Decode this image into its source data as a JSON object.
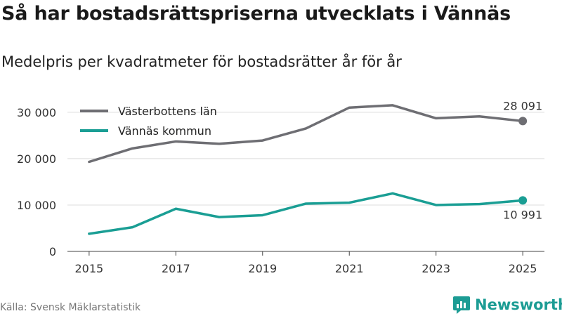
{
  "title": "Så har bostadsrättspriserna utvecklats i Vännäs",
  "subtitle": "Medelpris per kvadratmeter för bostadsrätter år för år",
  "source": "Källa: Svensk Mäklarstatistik",
  "brand": "Newsworthy",
  "chart_data": {
    "type": "line",
    "x": [
      2015,
      2016,
      2017,
      2018,
      2019,
      2020,
      2021,
      2022,
      2023,
      2024,
      2025
    ],
    "xticks": [
      2015,
      2017,
      2019,
      2021,
      2023,
      2025
    ],
    "xtick_labels": [
      "2015",
      "2017",
      "2019",
      "2021",
      "2023",
      "2025"
    ],
    "yticks": [
      0,
      10000,
      20000,
      30000
    ],
    "ytick_labels": [
      "0",
      "10 000",
      "20 000",
      "30 000"
    ],
    "ylim": [
      0,
      33000
    ],
    "xlim": [
      2014.5,
      2025.5
    ],
    "series": [
      {
        "name": "Västerbottens län",
        "color": "#6e6e73",
        "values": [
          19300,
          22200,
          23700,
          23200,
          23900,
          26500,
          31000,
          31500,
          28700,
          29100,
          28091
        ],
        "end_label": "28 091"
      },
      {
        "name": "Vännäs kommun",
        "color": "#1a9e94",
        "values": [
          3800,
          5200,
          9200,
          7400,
          7800,
          10300,
          10500,
          12500,
          10000,
          10200,
          10991
        ],
        "end_label": "10 991"
      }
    ],
    "legend_position": "top-left"
  }
}
